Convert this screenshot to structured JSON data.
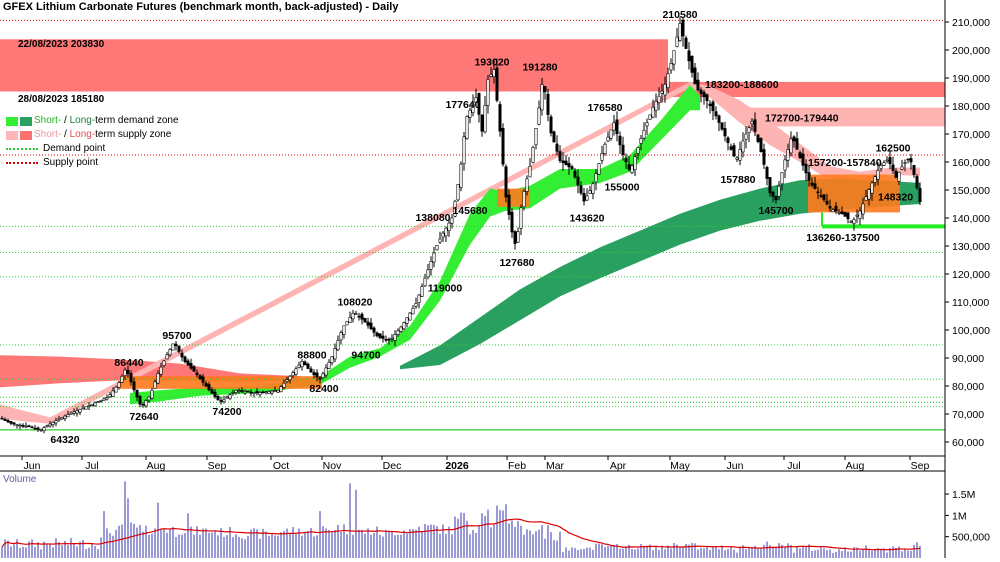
{
  "title": "GFEX Lithium Carbonate Futures (benchmark month, back-adjusted) - Daily",
  "legend": {
    "items": [
      {
        "label_a": "Short-",
        "label_b": " / ",
        "label_c": "Long-",
        "label_d": "term demand zone",
        "color_a": "#33ee33",
        "color_b": "#2aa060",
        "text_a_color": "#22bb22",
        "text_c_color": "#1a8040"
      },
      {
        "label_a": "Short-",
        "label_b": " / ",
        "label_c": "Long-",
        "label_d": "term supply zone",
        "color_a": "#ffb6b6",
        "color_b": "#ff7070",
        "text_a_color": "#ee9a9a",
        "text_c_color": "#dd5050"
      }
    ],
    "demand_point": "Demand point",
    "supply_point": "Supply point",
    "demand_point_color": "#33cc33",
    "supply_point_color": "#dd0000"
  },
  "zone_notes": {
    "upper": "22/08/2023 203830",
    "lower": "28/08/2023 185180"
  },
  "volume_label": "Volume",
  "chart_data": {
    "type": "line",
    "price_axis": {
      "ylim": [
        55000,
        215000
      ],
      "ticks": [
        "60,000",
        "70,000",
        "80,000",
        "90,000",
        "100,000",
        "110,000",
        "120,000",
        "130,000",
        "140,000",
        "150,000",
        "160,000",
        "170,000",
        "180,000",
        "190,000",
        "200,000",
        "210,000"
      ]
    },
    "volume_axis": {
      "ylim": [
        0,
        1900000
      ],
      "ticks": [
        "500,000",
        "1M",
        "1.5M"
      ]
    },
    "months": [
      "Jun",
      "Jul",
      "Aug",
      "Sep",
      "Oct",
      "Nov",
      "Dec",
      "2026",
      "Feb",
      "Mar",
      "Apr",
      "May",
      "Jun",
      "Jul",
      "Aug",
      "Sep"
    ],
    "price_path": [
      {
        "t": 0,
        "v": 68500
      },
      {
        "t": 12,
        "v": 66500
      },
      {
        "t": 30,
        "v": 65500
      },
      {
        "t": 40,
        "v": 64320
      },
      {
        "t": 55,
        "v": 67500
      },
      {
        "t": 72,
        "v": 70500
      },
      {
        "t": 92,
        "v": 73500
      },
      {
        "t": 108,
        "v": 76000
      },
      {
        "t": 118,
        "v": 80500
      },
      {
        "t": 126,
        "v": 86440
      },
      {
        "t": 133,
        "v": 79500
      },
      {
        "t": 141,
        "v": 72640
      },
      {
        "t": 150,
        "v": 76500
      },
      {
        "t": 158,
        "v": 84500
      },
      {
        "t": 166,
        "v": 90500
      },
      {
        "t": 174,
        "v": 95700
      },
      {
        "t": 184,
        "v": 89000
      },
      {
        "t": 196,
        "v": 84500
      },
      {
        "t": 208,
        "v": 79000
      },
      {
        "t": 220,
        "v": 74200
      },
      {
        "t": 236,
        "v": 78500
      },
      {
        "t": 256,
        "v": 77500
      },
      {
        "t": 278,
        "v": 78500
      },
      {
        "t": 290,
        "v": 83500
      },
      {
        "t": 302,
        "v": 88800
      },
      {
        "t": 312,
        "v": 84500
      },
      {
        "t": 320,
        "v": 82400
      },
      {
        "t": 332,
        "v": 90500
      },
      {
        "t": 343,
        "v": 101000
      },
      {
        "t": 354,
        "v": 106500
      },
      {
        "t": 366,
        "v": 102500
      },
      {
        "t": 378,
        "v": 97500
      },
      {
        "t": 390,
        "v": 96200
      },
      {
        "t": 402,
        "v": 101500
      },
      {
        "t": 416,
        "v": 109500
      },
      {
        "t": 428,
        "v": 121500
      },
      {
        "t": 436,
        "v": 129500
      },
      {
        "t": 442,
        "v": 134000
      },
      {
        "t": 452,
        "v": 140000
      },
      {
        "t": 460,
        "v": 156000
      },
      {
        "t": 466,
        "v": 175500
      },
      {
        "t": 476,
        "v": 183000
      },
      {
        "t": 482,
        "v": 171000
      },
      {
        "t": 488,
        "v": 189500
      },
      {
        "t": 494,
        "v": 193020
      },
      {
        "t": 500,
        "v": 171000
      },
      {
        "t": 506,
        "v": 147500
      },
      {
        "t": 512,
        "v": 135000
      },
      {
        "t": 516,
        "v": 129500
      },
      {
        "t": 522,
        "v": 146500
      },
      {
        "t": 530,
        "v": 158500
      },
      {
        "t": 538,
        "v": 176500
      },
      {
        "t": 543,
        "v": 190500
      },
      {
        "t": 550,
        "v": 171500
      },
      {
        "t": 560,
        "v": 160500
      },
      {
        "t": 572,
        "v": 157500
      },
      {
        "t": 584,
        "v": 146000
      },
      {
        "t": 592,
        "v": 151000
      },
      {
        "t": 604,
        "v": 165500
      },
      {
        "t": 614,
        "v": 174000
      },
      {
        "t": 622,
        "v": 163500
      },
      {
        "t": 630,
        "v": 156500
      },
      {
        "t": 642,
        "v": 169500
      },
      {
        "t": 654,
        "v": 180500
      },
      {
        "t": 664,
        "v": 186500
      },
      {
        "t": 672,
        "v": 196500
      },
      {
        "t": 680,
        "v": 209500
      },
      {
        "t": 688,
        "v": 197500
      },
      {
        "t": 696,
        "v": 186500
      },
      {
        "t": 706,
        "v": 182500
      },
      {
        "t": 716,
        "v": 176500
      },
      {
        "t": 726,
        "v": 168500
      },
      {
        "t": 736,
        "v": 160500
      },
      {
        "t": 744,
        "v": 168500
      },
      {
        "t": 752,
        "v": 174500
      },
      {
        "t": 762,
        "v": 162500
      },
      {
        "t": 770,
        "v": 149000
      },
      {
        "t": 776,
        "v": 146500
      },
      {
        "t": 784,
        "v": 159500
      },
      {
        "t": 792,
        "v": 169500
      },
      {
        "t": 800,
        "v": 161500
      },
      {
        "t": 810,
        "v": 152500
      },
      {
        "t": 820,
        "v": 148500
      },
      {
        "t": 830,
        "v": 143500
      },
      {
        "t": 842,
        "v": 141500
      },
      {
        "t": 852,
        "v": 138500
      },
      {
        "t": 860,
        "v": 142500
      },
      {
        "t": 870,
        "v": 151000
      },
      {
        "t": 880,
        "v": 158500
      },
      {
        "t": 888,
        "v": 161000
      },
      {
        "t": 896,
        "v": 154500
      },
      {
        "t": 904,
        "v": 159500
      },
      {
        "t": 910,
        "v": 161500
      },
      {
        "t": 916,
        "v": 152500
      },
      {
        "t": 922,
        "v": 142500
      }
    ],
    "short_demand_zone": [
      {
        "t": 130,
        "lo": 73500,
        "hi": 77500
      },
      {
        "t": 160,
        "lo": 74500,
        "hi": 78500
      },
      {
        "t": 200,
        "lo": 76500,
        "hi": 79500
      },
      {
        "t": 260,
        "lo": 77500,
        "hi": 80000
      },
      {
        "t": 320,
        "lo": 80500,
        "hi": 83500
      },
      {
        "t": 350,
        "lo": 86500,
        "hi": 90500
      },
      {
        "t": 380,
        "lo": 90500,
        "hi": 93500
      },
      {
        "t": 410,
        "lo": 96500,
        "hi": 101500
      },
      {
        "t": 440,
        "lo": 110500,
        "hi": 117500
      },
      {
        "t": 470,
        "lo": 130500,
        "hi": 141500
      },
      {
        "t": 490,
        "lo": 140500,
        "hi": 150500
      },
      {
        "t": 505,
        "lo": 142500,
        "hi": 149500
      },
      {
        "t": 530,
        "lo": 143500,
        "hi": 151500
      },
      {
        "t": 560,
        "lo": 150500,
        "hi": 157500
      },
      {
        "t": 600,
        "lo": 152500,
        "hi": 157500
      },
      {
        "t": 630,
        "lo": 156500,
        "hi": 162500
      },
      {
        "t": 660,
        "lo": 167500,
        "hi": 174500
      },
      {
        "t": 690,
        "lo": 178500,
        "hi": 187500
      },
      {
        "t": 700,
        "lo": 178500,
        "hi": 183500
      }
    ],
    "long_demand_zone": [
      {
        "t": 400,
        "lo": 86000,
        "hi": 87200
      },
      {
        "t": 440,
        "lo": 87500,
        "hi": 94500
      },
      {
        "t": 480,
        "lo": 95000,
        "hi": 104500
      },
      {
        "t": 520,
        "lo": 103500,
        "hi": 114500
      },
      {
        "t": 560,
        "lo": 112000,
        "hi": 122500
      },
      {
        "t": 600,
        "lo": 118500,
        "hi": 129500
      },
      {
        "t": 640,
        "lo": 124500,
        "hi": 135500
      },
      {
        "t": 680,
        "lo": 130500,
        "hi": 141500
      },
      {
        "t": 720,
        "lo": 135500,
        "hi": 146500
      },
      {
        "t": 760,
        "lo": 139000,
        "hi": 150500
      },
      {
        "t": 800,
        "lo": 141500,
        "hi": 153500
      },
      {
        "t": 840,
        "lo": 143000,
        "hi": 154000
      },
      {
        "t": 880,
        "lo": 144000,
        "hi": 153500
      },
      {
        "t": 920,
        "lo": 145000,
        "hi": 152500
      }
    ],
    "short_supply_zone": [
      {
        "t": 0,
        "lo": 68500,
        "hi": 73500
      },
      {
        "t": 20,
        "lo": 67500,
        "hi": 71500
      },
      {
        "t": 50,
        "lo": 66500,
        "hi": 68800
      },
      {
        "t": 690,
        "lo": 186500,
        "hi": 188600
      },
      {
        "t": 710,
        "lo": 183000,
        "hi": 187000
      },
      {
        "t": 740,
        "lo": 174000,
        "hi": 182000
      },
      {
        "t": 770,
        "lo": 166000,
        "hi": 174500
      },
      {
        "t": 800,
        "lo": 160000,
        "hi": 166500
      },
      {
        "t": 830,
        "lo": 153500,
        "hi": 158500
      },
      {
        "t": 860,
        "lo": 152500,
        "hi": 156500
      },
      {
        "t": 890,
        "lo": 155500,
        "hi": 158000
      },
      {
        "t": 920,
        "lo": 155000,
        "hi": 158000
      }
    ],
    "long_supply_zone": [
      {
        "t": 0,
        "lo": 79500,
        "hi": 91000
      },
      {
        "t": 60,
        "lo": 81000,
        "hi": 90500
      },
      {
        "t": 120,
        "lo": 82000,
        "hi": 89500
      },
      {
        "t": 180,
        "lo": 82000,
        "hi": 88000
      },
      {
        "t": 240,
        "lo": 81500,
        "hi": 84500
      },
      {
        "t": 300,
        "lo": 82000,
        "hi": 83500
      }
    ],
    "overlap_zones": [
      {
        "from": 120,
        "to": 322,
        "lo": 79000,
        "hi": 83500
      },
      {
        "from": 497,
        "to": 530,
        "lo": 144000,
        "hi": 150500
      },
      {
        "from": 808,
        "to": 900,
        "lo": 142000,
        "hi": 155500
      }
    ],
    "supply_bands": [
      {
        "from": 0,
        "to": 668,
        "lo": 185180,
        "hi": 203830
      },
      {
        "from": 668,
        "to": 945,
        "lo": 183200,
        "hi": 188600
      },
      {
        "from": 745,
        "to": 945,
        "lo": 172700,
        "hi": 179440
      }
    ],
    "supply_points": [
      210580,
      162500
    ],
    "demand_points": [
      137000,
      127680,
      119000,
      94700,
      82400,
      76000,
      74200,
      72640,
      64320
    ],
    "demand_hot_line": {
      "from": 822,
      "value": 137000
    },
    "annotations": [
      {
        "text": "210580",
        "t": 680,
        "v": 211500,
        "anchor": "middle"
      },
      {
        "text": "193020",
        "t": 492,
        "v": 194500,
        "anchor": "middle"
      },
      {
        "text": "191280",
        "t": 540,
        "v": 192700,
        "anchor": "middle"
      },
      {
        "text": "183200-188600",
        "t": 705,
        "v": 186500,
        "anchor": "start"
      },
      {
        "text": "177640",
        "t": 463,
        "v": 179200,
        "anchor": "middle"
      },
      {
        "text": "176580",
        "t": 605,
        "v": 178200,
        "anchor": "middle"
      },
      {
        "text": "172700-179440",
        "t": 765,
        "v": 174500,
        "anchor": "start"
      },
      {
        "text": "162500",
        "t": 893,
        "v": 163800,
        "anchor": "middle"
      },
      {
        "text": "157200-157840",
        "t": 808,
        "v": 158600,
        "anchor": "start"
      },
      {
        "text": "157880",
        "t": 738,
        "v": 152500,
        "anchor": "middle"
      },
      {
        "text": "155000",
        "t": 622,
        "v": 149800,
        "anchor": "middle"
      },
      {
        "text": "148320",
        "t": 878,
        "v": 146200,
        "anchor": "start"
      },
      {
        "text": "145700",
        "t": 776,
        "v": 141500,
        "anchor": "middle"
      },
      {
        "text": "145680",
        "t": 470,
        "v": 141500,
        "anchor": "middle"
      },
      {
        "text": "143620",
        "t": 587,
        "v": 138800,
        "anchor": "middle"
      },
      {
        "text": "138080",
        "t": 433,
        "v": 139000,
        "anchor": "middle"
      },
      {
        "text": "136260-137500",
        "t": 843,
        "v": 131800,
        "anchor": "middle"
      },
      {
        "text": "127680",
        "t": 517,
        "v": 122800,
        "anchor": "middle"
      },
      {
        "text": "119000",
        "t": 445,
        "v": 113800,
        "anchor": "middle"
      },
      {
        "text": "108020",
        "t": 355,
        "v": 108800,
        "anchor": "middle"
      },
      {
        "text": "95700",
        "t": 177,
        "v": 96800,
        "anchor": "middle"
      },
      {
        "text": "94700",
        "t": 366,
        "v": 89800,
        "anchor": "middle"
      },
      {
        "text": "88800",
        "t": 312,
        "v": 89800,
        "anchor": "middle"
      },
      {
        "text": "86440",
        "t": 129,
        "v": 87200,
        "anchor": "middle"
      },
      {
        "text": "82400",
        "t": 324,
        "v": 77800,
        "anchor": "middle"
      },
      {
        "text": "74200",
        "t": 227,
        "v": 69600,
        "anchor": "middle"
      },
      {
        "text": "72640",
        "t": 144,
        "v": 67800,
        "anchor": "middle"
      },
      {
        "text": "64320",
        "t": 65,
        "v": 59600,
        "anchor": "middle"
      }
    ]
  }
}
